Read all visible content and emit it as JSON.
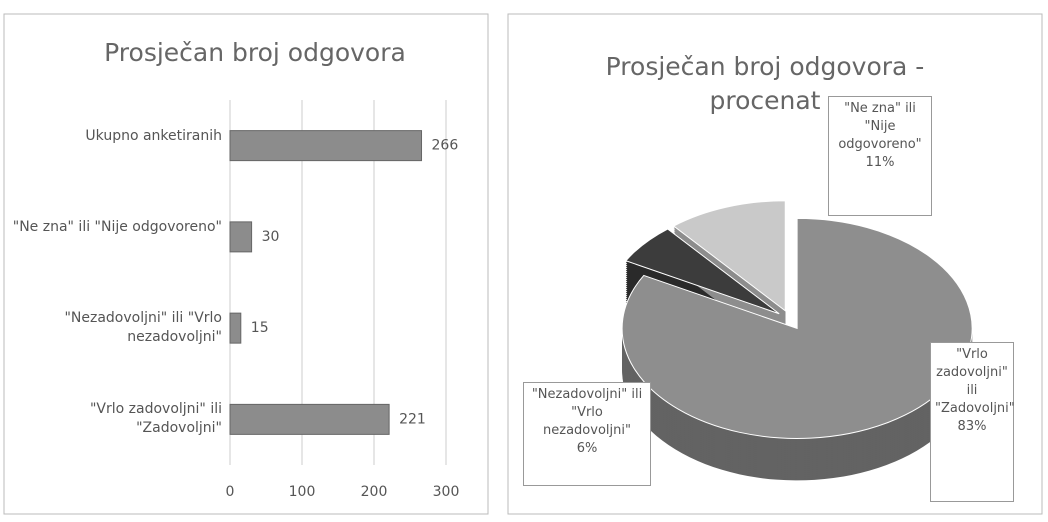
{
  "chart_data": [
    {
      "type": "barh",
      "title": "Prosječan broj odgovora",
      "categories": [
        "Ukupno anketiranih",
        "\"Ne zna\" ili \"Nije odgovoreno\"",
        "\"Nezadovoljni\" ili \"Vrlo nezadovoljni\"",
        "\"Vrlo zadovoljni\" ili \"Zadovoljni\""
      ],
      "values": [
        266,
        30,
        15,
        221
      ],
      "color": "#8c8c8c",
      "xlim": [
        0,
        300
      ],
      "xticks": [
        0,
        100,
        200,
        300
      ],
      "grid": true
    },
    {
      "type": "pie",
      "title": "Prosječan broj odgovora - procenat",
      "categories": [
        "\"Vrlo zadovoljni\" ili \"Zadovoljni\"",
        "\"Nezadovoljni\" ili \"Vrlo nezadovoljni\"",
        "\"Ne zna\" ili \"Nije odgovoreno\""
      ],
      "values": [
        83,
        6,
        11
      ],
      "value_labels": [
        "83%",
        "6%",
        "11%"
      ],
      "colors": [
        "#8e8e8e",
        "#3c3c3c",
        "#c9c9c9"
      ]
    }
  ]
}
